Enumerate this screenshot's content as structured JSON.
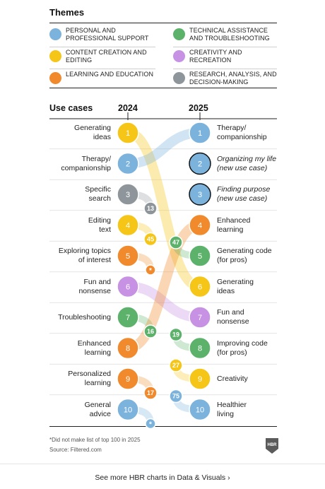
{
  "themes": {
    "title": "Themes",
    "items": [
      {
        "label": "PERSONAL AND PROFESSIONAL SUPPORT",
        "key": "support",
        "color": "#7bb3dd"
      },
      {
        "label": "TECHNICAL ASSISTANCE AND TROUBLESHOOTING",
        "key": "technical",
        "color": "#5cb26a"
      },
      {
        "label": "CONTENT CREATION AND EDITING",
        "key": "content",
        "color": "#f5c518"
      },
      {
        "label": "CREATIVITY AND RECREATION",
        "key": "creativity",
        "color": "#c792e3"
      },
      {
        "label": "LEARNING AND EDUCATION",
        "key": "learning",
        "color": "#f08a2c"
      },
      {
        "label": "RESEARCH, ANALYSIS, AND DECISION-MAKING",
        "key": "research",
        "color": "#8f969b"
      }
    ]
  },
  "headers": {
    "use_cases": "Use cases",
    "year_2024": "2024",
    "year_2025": "2025"
  },
  "chart_data": {
    "type": "bump",
    "years": [
      "2024",
      "2025"
    ],
    "left": [
      {
        "rank": 1,
        "label": "Generating ideas",
        "lines": [
          "Generating",
          "ideas"
        ],
        "theme": "content",
        "rank_2025": "6"
      },
      {
        "rank": 2,
        "label": "Therapy/ companionship",
        "lines": [
          "Therapy/",
          "companionship"
        ],
        "theme": "support",
        "rank_2025": "1"
      },
      {
        "rank": 3,
        "label": "Specific search",
        "lines": [
          "Specific",
          "search"
        ],
        "theme": "research",
        "rank_2025": "13"
      },
      {
        "rank": 4,
        "label": "Editing text",
        "lines": [
          "Editing",
          "text"
        ],
        "theme": "content",
        "rank_2025": "45"
      },
      {
        "rank": 5,
        "label": "Exploring topics of interest",
        "lines": [
          "Exploring topics",
          "of interest"
        ],
        "theme": "learning",
        "rank_2025": "*"
      },
      {
        "rank": 6,
        "label": "Fun and nonsense",
        "lines": [
          "Fun and",
          "nonsense"
        ],
        "theme": "creativity",
        "rank_2025": "7"
      },
      {
        "rank": 7,
        "label": "Troubleshooting",
        "lines": [
          "Troubleshooting"
        ],
        "theme": "technical",
        "rank_2025": "16"
      },
      {
        "rank": 8,
        "label": "Enhanced learning",
        "lines": [
          "Enhanced",
          "learning"
        ],
        "theme": "learning",
        "rank_2025": "4"
      },
      {
        "rank": 9,
        "label": "Personalized learning",
        "lines": [
          "Personalized",
          "learning"
        ],
        "theme": "learning",
        "rank_2025": "17"
      },
      {
        "rank": 10,
        "label": "General advice",
        "lines": [
          "General",
          "advice"
        ],
        "theme": "support",
        "rank_2025": "*"
      }
    ],
    "right": [
      {
        "rank": 1,
        "label": "Therapy/ companionship",
        "lines": [
          "Therapy/",
          "companionship"
        ],
        "theme": "support",
        "new": false
      },
      {
        "rank": 2,
        "label": "Organizing my life (new use case)",
        "lines": [
          "Organizing my life",
          "(new use case)"
        ],
        "theme": "support",
        "new": true
      },
      {
        "rank": 3,
        "label": "Finding purpose (new use case)",
        "lines": [
          "Finding purpose",
          "(new use case)"
        ],
        "theme": "support",
        "new": true
      },
      {
        "rank": 4,
        "label": "Enhanced learning",
        "lines": [
          "Enhanced",
          "learning"
        ],
        "theme": "learning",
        "new": false
      },
      {
        "rank": 5,
        "label": "Generating code (for pros)",
        "lines": [
          "Generating code",
          "(for pros)"
        ],
        "theme": "technical",
        "new": false
      },
      {
        "rank": 6,
        "label": "Generating ideas",
        "lines": [
          "Generating",
          "ideas"
        ],
        "theme": "content",
        "new": false
      },
      {
        "rank": 7,
        "label": "Fun and nonsense",
        "lines": [
          "Fun and",
          "nonsense"
        ],
        "theme": "creativity",
        "new": false
      },
      {
        "rank": 8,
        "label": "Improving code (for pros)",
        "lines": [
          "Improving code",
          "(for pros)"
        ],
        "theme": "technical",
        "new": false
      },
      {
        "rank": 9,
        "label": "Creativity",
        "lines": [
          "Creativity"
        ],
        "theme": "content",
        "new": false
      },
      {
        "rank": 10,
        "label": "Healthier living",
        "lines": [
          "Healthier",
          "living"
        ],
        "theme": "support",
        "new": false
      }
    ],
    "incoming": [
      {
        "rank_2025": 5,
        "rank_2024": "47",
        "theme": "technical"
      },
      {
        "rank_2025": 8,
        "rank_2024": "19",
        "theme": "technical"
      },
      {
        "rank_2025": 9,
        "rank_2024": "27",
        "theme": "content"
      },
      {
        "rank_2025": 10,
        "rank_2024": "75",
        "theme": "support"
      }
    ]
  },
  "footer": {
    "note": "*Did not make list of top 100 in 2025",
    "source": "Source: Filtered.com",
    "badge": "HBR",
    "link": "See more HBR charts in Data & Visuals",
    "link_arrow": "›"
  }
}
